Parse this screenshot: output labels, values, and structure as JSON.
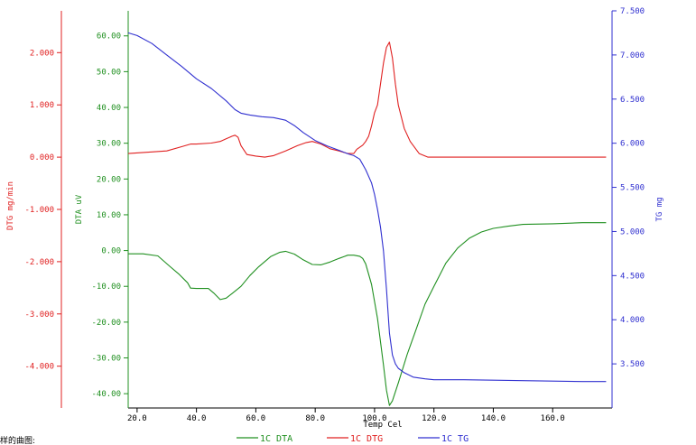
{
  "chart_data": {
    "type": "line",
    "x": {
      "label": "Temp Cel",
      "range": [
        17,
        180
      ],
      "ticks": [
        20,
        40,
        60,
        80,
        100,
        120,
        140,
        160
      ],
      "tick_labels": [
        "20.0",
        "40.0",
        "60.0",
        "80.0",
        "100.0",
        "120.0",
        "140.0",
        "160.0"
      ]
    },
    "axes": {
      "dtg": {
        "label": "DTG mg/min",
        "color": "#e02020",
        "range": [
          -4.8,
          2.8
        ],
        "ticks": [
          2,
          1,
          0,
          -1,
          -2,
          -3,
          -4
        ],
        "tick_labels": [
          "2.000",
          "1.000",
          "0.000",
          "-1.000",
          "-2.000",
          "-3.000",
          "-4.000"
        ]
      },
      "dta": {
        "label": "DTA uV",
        "color": "#209020",
        "range": [
          -44,
          67
        ],
        "ticks": [
          60,
          50,
          40,
          30,
          20,
          10,
          0,
          -10,
          -20,
          -30,
          -40
        ],
        "tick_labels": [
          "60.00",
          "50.00",
          "40.00",
          "30.00",
          "20.00",
          "10.00",
          "0.00",
          "-10.00",
          "-20.00",
          "-30.00",
          "-40.00"
        ]
      },
      "tg": {
        "label": "TG mg",
        "color": "#3030d0",
        "range": [
          3.0,
          7.5
        ],
        "ticks": [
          7.5,
          7.0,
          6.5,
          6.0,
          5.5,
          5.0,
          4.5,
          4.0,
          3.5
        ],
        "tick_labels": [
          "7.500",
          "7.000",
          "6.500",
          "6.000",
          "5.500",
          "5.000",
          "4.500",
          "4.000",
          "3.500"
        ]
      }
    },
    "series": [
      {
        "name": "1C DTA",
        "axis": "dta",
        "color": "#209020",
        "points": [
          [
            17,
            -0.9
          ],
          [
            22,
            -0.9
          ],
          [
            27,
            -1.5
          ],
          [
            31,
            -4.4
          ],
          [
            34,
            -6.5
          ],
          [
            37,
            -9
          ],
          [
            38,
            -10.5
          ],
          [
            40,
            -10.6
          ],
          [
            44,
            -10.6
          ],
          [
            46,
            -12
          ],
          [
            48,
            -13.7
          ],
          [
            50,
            -13.3
          ],
          [
            52,
            -12
          ],
          [
            55,
            -10
          ],
          [
            58,
            -7
          ],
          [
            61,
            -4.5
          ],
          [
            65,
            -1.7
          ],
          [
            68,
            -0.5
          ],
          [
            70,
            -0.2
          ],
          [
            73,
            -1
          ],
          [
            76,
            -2.6
          ],
          [
            79,
            -3.9
          ],
          [
            82,
            -4
          ],
          [
            85,
            -3.2
          ],
          [
            88,
            -2.2
          ],
          [
            91,
            -1.3
          ],
          [
            93,
            -1.3
          ],
          [
            95,
            -1.6
          ],
          [
            96,
            -2.2
          ],
          [
            97,
            -3.7
          ],
          [
            99,
            -9.5
          ],
          [
            101,
            -19
          ],
          [
            103,
            -32
          ],
          [
            104,
            -39
          ],
          [
            105,
            -43.3
          ],
          [
            106,
            -42
          ],
          [
            108,
            -37
          ],
          [
            111,
            -29
          ],
          [
            114,
            -22
          ],
          [
            117,
            -15
          ],
          [
            120,
            -10
          ],
          [
            124,
            -3.5
          ],
          [
            128,
            0.7
          ],
          [
            132,
            3.5
          ],
          [
            136,
            5.2
          ],
          [
            140,
            6.2
          ],
          [
            145,
            6.8
          ],
          [
            150,
            7.3
          ],
          [
            160,
            7.5
          ],
          [
            170,
            7.8
          ],
          [
            178,
            7.8
          ]
        ]
      },
      {
        "name": "1C DTG",
        "axis": "dtg",
        "color": "#e02020",
        "points": [
          [
            17,
            0.07
          ],
          [
            25,
            0.1
          ],
          [
            30,
            0.12
          ],
          [
            35,
            0.2
          ],
          [
            38,
            0.25
          ],
          [
            40,
            0.25
          ],
          [
            45,
            0.27
          ],
          [
            48,
            0.3
          ],
          [
            50,
            0.35
          ],
          [
            52,
            0.4
          ],
          [
            53,
            0.42
          ],
          [
            54,
            0.38
          ],
          [
            55,
            0.22
          ],
          [
            57,
            0.05
          ],
          [
            60,
            0.02
          ],
          [
            63,
            0.0
          ],
          [
            66,
            0.03
          ],
          [
            70,
            0.12
          ],
          [
            74,
            0.22
          ],
          [
            77,
            0.28
          ],
          [
            79,
            0.3
          ],
          [
            82,
            0.25
          ],
          [
            85,
            0.16
          ],
          [
            88,
            0.12
          ],
          [
            91,
            0.07
          ],
          [
            93,
            0.07
          ],
          [
            94,
            0.15
          ],
          [
            96,
            0.23
          ],
          [
            97,
            0.3
          ],
          [
            98,
            0.4
          ],
          [
            99,
            0.6
          ],
          [
            100,
            0.85
          ],
          [
            101,
            1.0
          ],
          [
            102,
            1.4
          ],
          [
            103,
            1.8
          ],
          [
            104,
            2.1
          ],
          [
            105,
            2.2
          ],
          [
            106,
            1.9
          ],
          [
            107,
            1.4
          ],
          [
            108,
            1.0
          ],
          [
            110,
            0.55
          ],
          [
            112,
            0.3
          ],
          [
            115,
            0.07
          ],
          [
            118,
            0.0
          ],
          [
            125,
            0.0
          ],
          [
            140,
            0.0
          ],
          [
            160,
            0.0
          ],
          [
            178,
            0.0
          ]
        ]
      },
      {
        "name": "1C TG",
        "axis": "tg",
        "color": "#3030d0",
        "points": [
          [
            17,
            7.25
          ],
          [
            20,
            7.22
          ],
          [
            25,
            7.13
          ],
          [
            30,
            7.0
          ],
          [
            35,
            6.87
          ],
          [
            40,
            6.73
          ],
          [
            45,
            6.62
          ],
          [
            50,
            6.48
          ],
          [
            53,
            6.38
          ],
          [
            55,
            6.34
          ],
          [
            58,
            6.32
          ],
          [
            62,
            6.3
          ],
          [
            66,
            6.29
          ],
          [
            70,
            6.26
          ],
          [
            73,
            6.2
          ],
          [
            76,
            6.12
          ],
          [
            80,
            6.03
          ],
          [
            84,
            5.97
          ],
          [
            88,
            5.92
          ],
          [
            91,
            5.88
          ],
          [
            93,
            5.86
          ],
          [
            95,
            5.82
          ],
          [
            97,
            5.7
          ],
          [
            99,
            5.55
          ],
          [
            100,
            5.42
          ],
          [
            101,
            5.25
          ],
          [
            102,
            5.05
          ],
          [
            103,
            4.78
          ],
          [
            104,
            4.35
          ],
          [
            105,
            3.85
          ],
          [
            106,
            3.6
          ],
          [
            107,
            3.5
          ],
          [
            108,
            3.45
          ],
          [
            110,
            3.4
          ],
          [
            113,
            3.35
          ],
          [
            117,
            3.33
          ],
          [
            120,
            3.32
          ],
          [
            130,
            3.32
          ],
          [
            150,
            3.31
          ],
          [
            170,
            3.3
          ],
          [
            178,
            3.3
          ]
        ]
      }
    ],
    "legend": {
      "position": "bottom",
      "entries": [
        {
          "label": "1C   DTA",
          "color": "#209020"
        },
        {
          "label": "1C   DTG",
          "color": "#e02020"
        },
        {
          "label": "1C   TG",
          "color": "#3030d0"
        }
      ]
    },
    "grid": false
  },
  "footer": {
    "text": "样的曲图:"
  }
}
